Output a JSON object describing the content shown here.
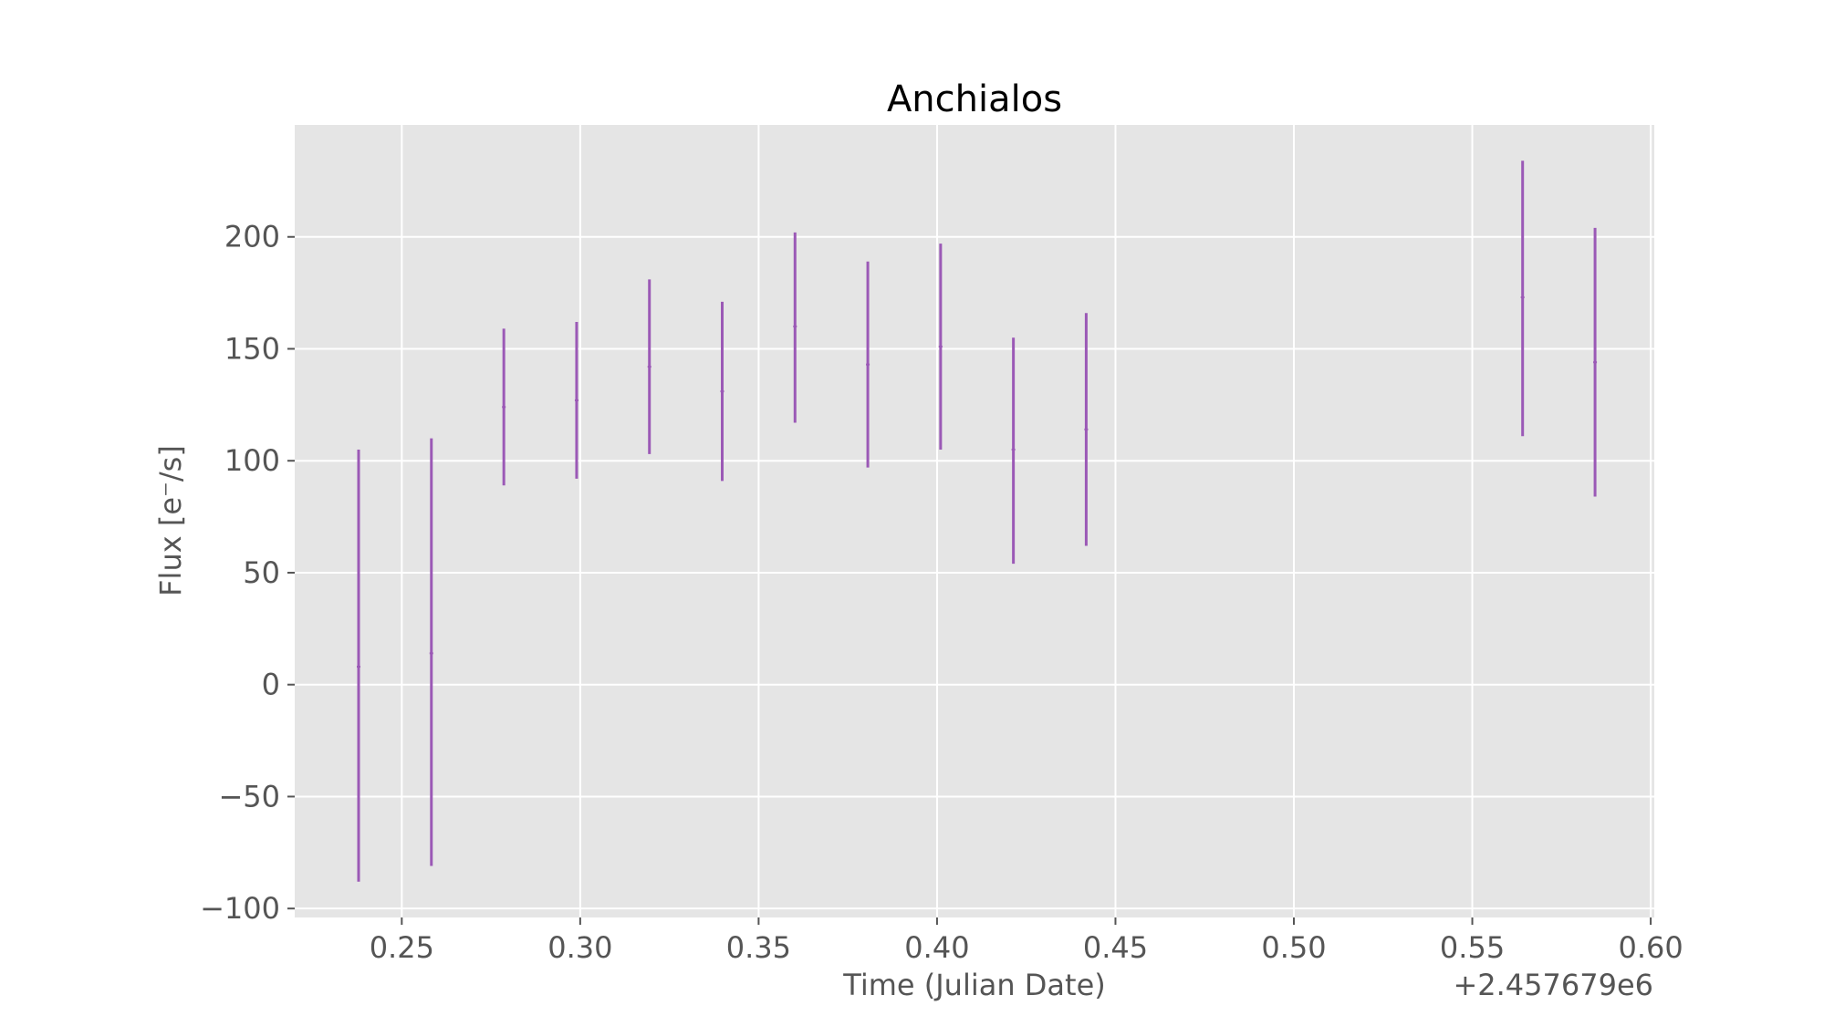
{
  "chart_data": {
    "type": "scatter",
    "title": "Anchialos",
    "xlabel": "Time (Julian Date)",
    "ylabel": "Flux [e⁻/s]",
    "x_offset_label": "+2.457679e6",
    "xlim": [
      0.22,
      0.601
    ],
    "ylim": [
      -104,
      250
    ],
    "xticks": [
      0.25,
      0.3,
      0.35,
      0.4,
      0.45,
      0.5,
      0.55,
      0.6
    ],
    "xtick_labels": [
      "0.25",
      "0.30",
      "0.35",
      "0.40",
      "0.45",
      "0.50",
      "0.55",
      "0.60"
    ],
    "yticks": [
      -100,
      -50,
      0,
      50,
      100,
      150,
      200
    ],
    "ytick_labels": [
      "−100",
      "−50",
      "0",
      "50",
      "100",
      "150",
      "200"
    ],
    "grid": true,
    "colors": {
      "plot_background": "#e5e5e5",
      "series": "#9b59b6",
      "grid": "#ffffff"
    },
    "series": [
      {
        "points": [
          {
            "x": 0.2379,
            "y": 8,
            "yerr_low": 96,
            "yerr_high": 97
          },
          {
            "x": 0.2583,
            "y": 14,
            "yerr_low": 95,
            "yerr_high": 96
          },
          {
            "x": 0.2786,
            "y": 124,
            "yerr_low": 35,
            "yerr_high": 35
          },
          {
            "x": 0.299,
            "y": 127,
            "yerr_low": 35,
            "yerr_high": 35
          },
          {
            "x": 0.3194,
            "y": 142,
            "yerr_low": 39,
            "yerr_high": 39
          },
          {
            "x": 0.3398,
            "y": 131,
            "yerr_low": 40,
            "yerr_high": 40
          },
          {
            "x": 0.3602,
            "y": 160,
            "yerr_low": 43,
            "yerr_high": 42
          },
          {
            "x": 0.3806,
            "y": 143,
            "yerr_low": 46,
            "yerr_high": 46
          },
          {
            "x": 0.401,
            "y": 151,
            "yerr_low": 46,
            "yerr_high": 46
          },
          {
            "x": 0.4214,
            "y": 105,
            "yerr_low": 51,
            "yerr_high": 50
          },
          {
            "x": 0.4418,
            "y": 114,
            "yerr_low": 52,
            "yerr_high": 52
          },
          {
            "x": 0.5641,
            "y": 173,
            "yerr_low": 62,
            "yerr_high": 61
          },
          {
            "x": 0.5844,
            "y": 144,
            "yerr_low": 60,
            "yerr_high": 60
          }
        ]
      }
    ]
  }
}
